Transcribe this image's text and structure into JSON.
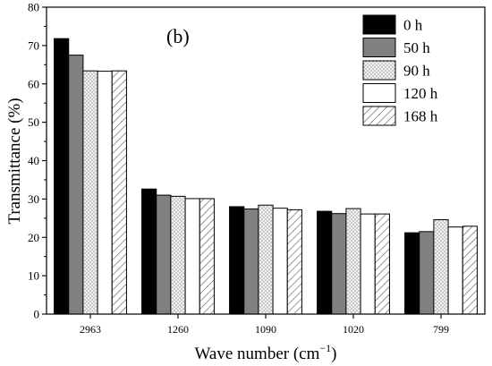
{
  "chart_data": {
    "type": "bar",
    "panel_label": "(b)",
    "xlabel": "Wave number (cm",
    "xlabel_sup": "−1",
    "xlabel_end": ")",
    "ylabel": "Transmittance (%)",
    "ylim": [
      0,
      80
    ],
    "yticks": [
      "0",
      "10",
      "20",
      "30",
      "40",
      "50",
      "60",
      "70",
      "80"
    ],
    "categories": [
      "2963",
      "1260",
      "1090",
      "1020",
      "799"
    ],
    "series": [
      {
        "name": "0 h",
        "fill": "#000000",
        "pattern": "solid",
        "values": [
          71.8,
          32.6,
          28.0,
          26.8,
          21.2
        ]
      },
      {
        "name": "50 h",
        "fill": "#808080",
        "pattern": "solid",
        "values": [
          67.5,
          31.0,
          27.4,
          26.2,
          21.5
        ]
      },
      {
        "name": "90 h",
        "fill": "#e6e6e6",
        "pattern": "dots",
        "values": [
          63.4,
          30.7,
          28.4,
          27.5,
          24.6
        ]
      },
      {
        "name": "120 h",
        "fill": "#ffffff",
        "pattern": "solid",
        "values": [
          63.3,
          30.1,
          27.6,
          26.1,
          22.7
        ]
      },
      {
        "name": "168 h",
        "fill": "#ffffff",
        "pattern": "hatch",
        "values": [
          63.4,
          30.1,
          27.2,
          26.1,
          22.9
        ]
      }
    ]
  }
}
